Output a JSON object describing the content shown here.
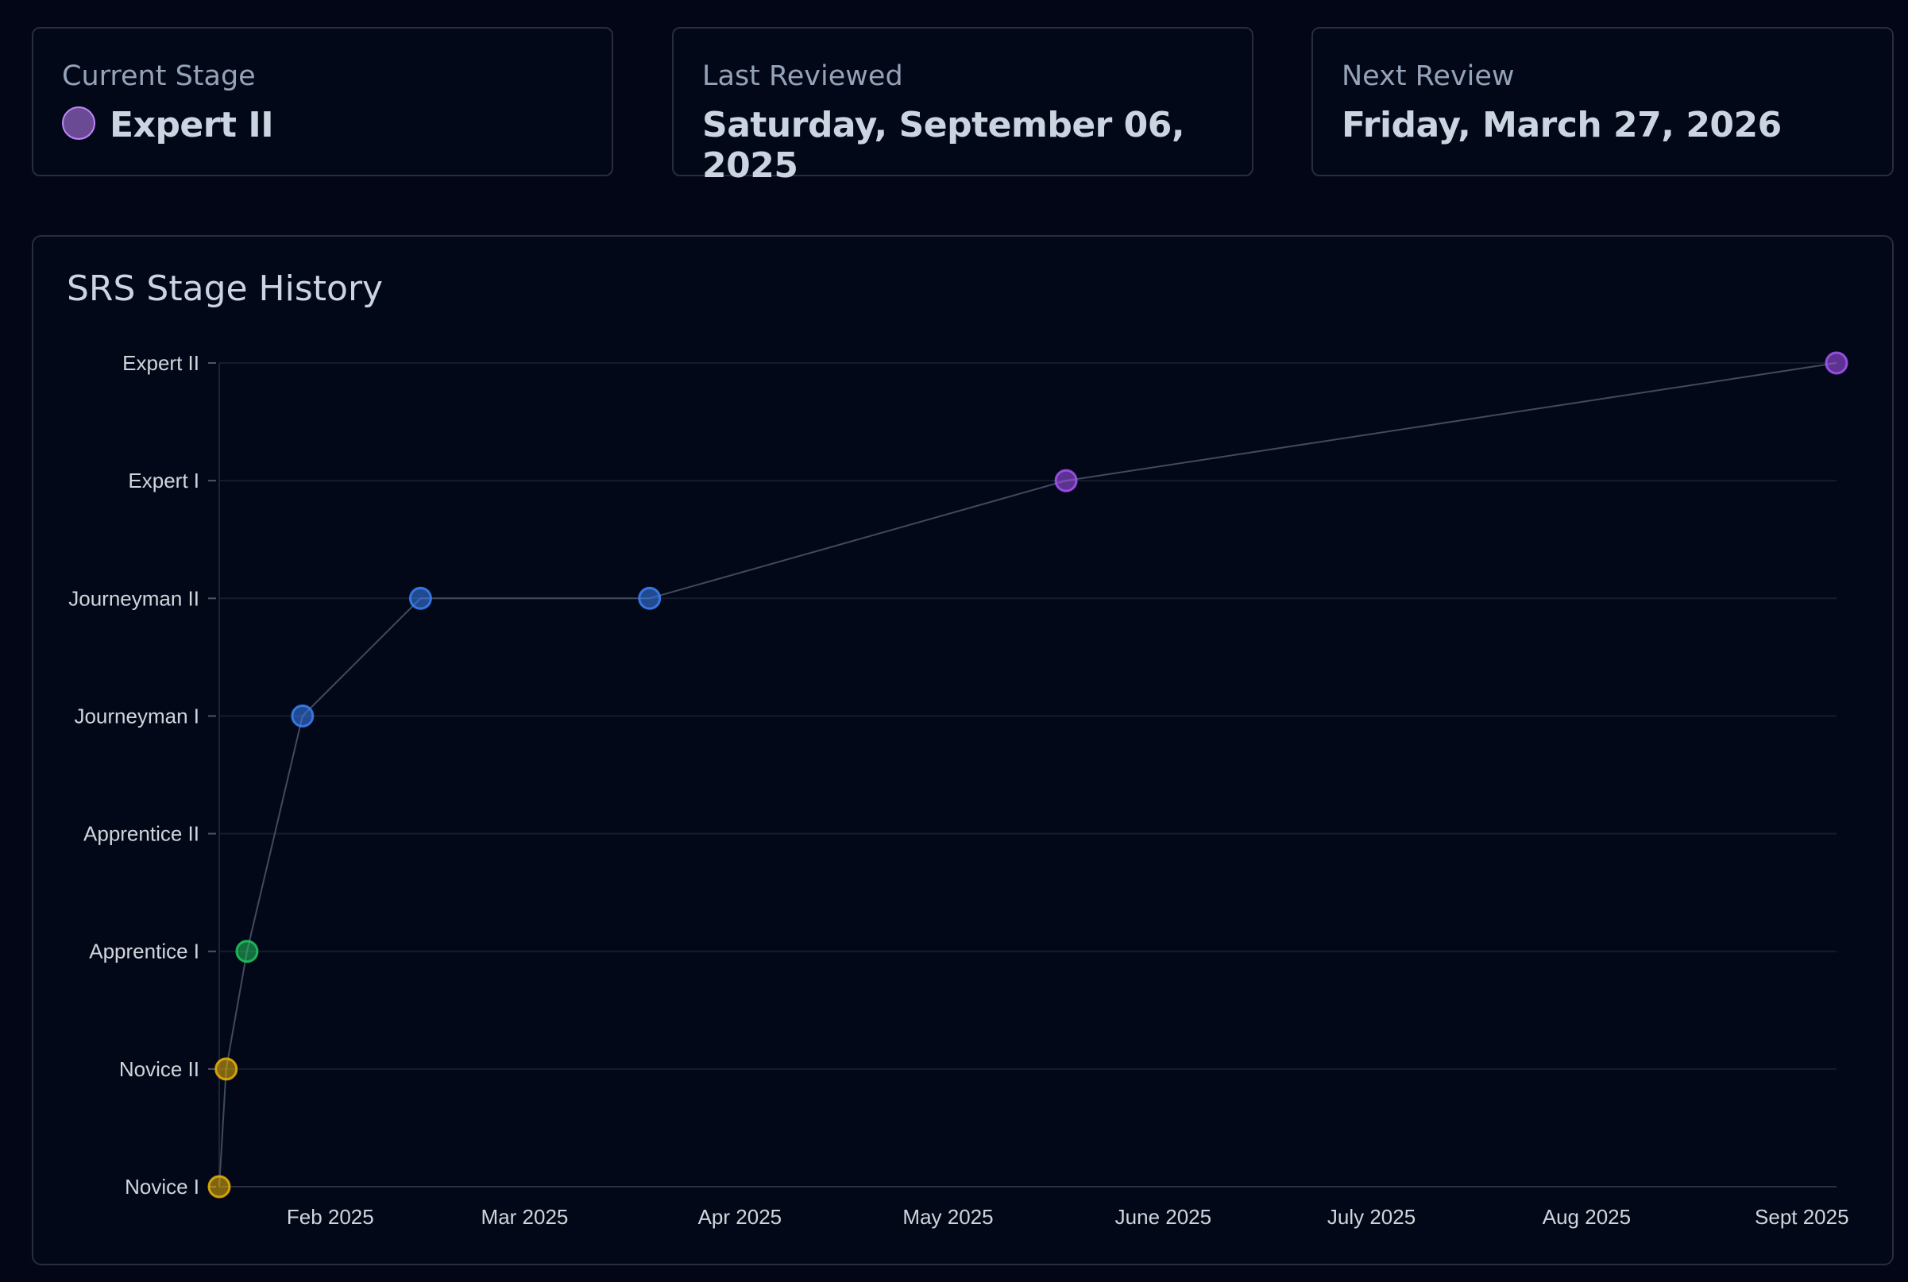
{
  "cards": {
    "current_stage": {
      "label": "Current Stage",
      "value": "Expert II",
      "dot_color": "#a855f7"
    },
    "last_reviewed": {
      "label": "Last Reviewed",
      "value": "Saturday, September 06, 2025"
    },
    "next_review": {
      "label": "Next Review",
      "value": "Friday, March 27, 2026"
    }
  },
  "chart_data": {
    "type": "line",
    "title": "SRS Stage History",
    "y_categories": [
      "Novice I",
      "Novice II",
      "Apprentice I",
      "Apprentice II",
      "Journeyman I",
      "Journeyman II",
      "Expert I",
      "Expert II"
    ],
    "x_ticks": [
      {
        "date": "2025-02-01",
        "label": "Feb 2025"
      },
      {
        "date": "2025-03-01",
        "label": "Mar 2025"
      },
      {
        "date": "2025-04-01",
        "label": "Apr 2025"
      },
      {
        "date": "2025-05-01",
        "label": "May 2025"
      },
      {
        "date": "2025-06-01",
        "label": "June 2025"
      },
      {
        "date": "2025-07-01",
        "label": "July 2025"
      },
      {
        "date": "2025-08-01",
        "label": "Aug 2025"
      },
      {
        "date": "2025-09-01",
        "label": "Sept 2025"
      }
    ],
    "xlim": [
      "2025-01-16",
      "2025-09-06"
    ],
    "grid": true,
    "points": [
      {
        "date": "2025-01-16",
        "stage": "Novice I"
      },
      {
        "date": "2025-01-17",
        "stage": "Novice II"
      },
      {
        "date": "2025-01-20",
        "stage": "Apprentice I"
      },
      {
        "date": "2025-01-28",
        "stage": "Journeyman I"
      },
      {
        "date": "2025-02-14",
        "stage": "Journeyman II"
      },
      {
        "date": "2025-03-19",
        "stage": "Journeyman II"
      },
      {
        "date": "2025-05-18",
        "stage": "Expert I"
      },
      {
        "date": "2025-09-06",
        "stage": "Expert II"
      }
    ],
    "stage_colors": {
      "Novice": "#eab308",
      "Apprentice": "#22c55e",
      "Journeyman": "#3b82f6",
      "Expert": "#a855f7"
    }
  }
}
